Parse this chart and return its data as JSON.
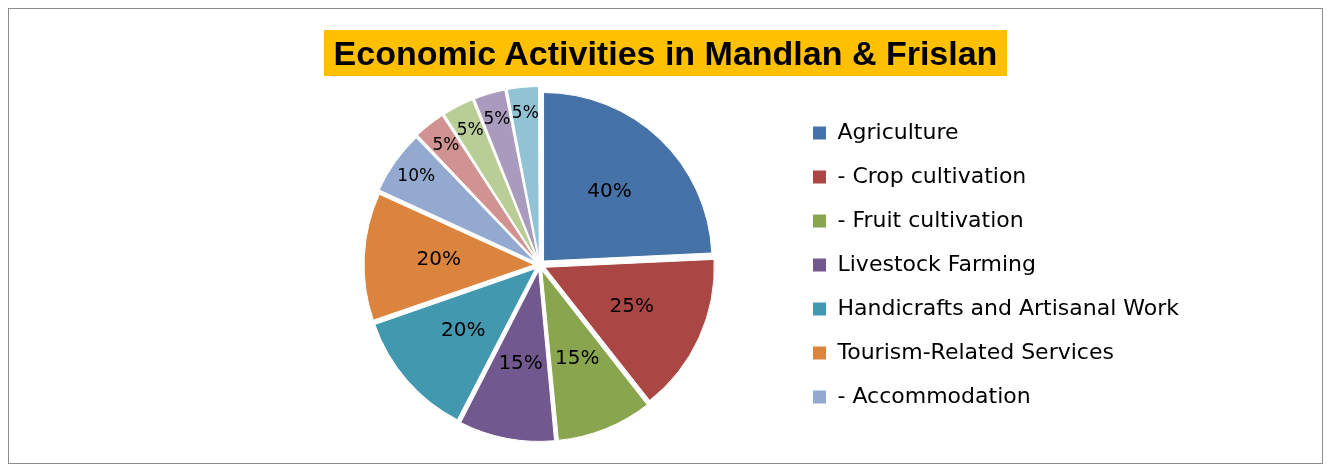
{
  "chart_data": {
    "type": "pie",
    "title": "Economic Activities in Mandlan & Frislan",
    "categories": [
      "Agriculture",
      "- Crop cultivation",
      "- Fruit cultivation",
      "Livestock Farming",
      "Handicrafts and Artisanal Work",
      "Tourism-Related Services",
      "- Accommodation",
      null,
      null,
      null,
      null
    ],
    "values": [
      40,
      25,
      15,
      15,
      20,
      20,
      10,
      5,
      5,
      5,
      5
    ],
    "value_labels": [
      "40%",
      "25%",
      "15%",
      "15%",
      "20%",
      "20%",
      "10%",
      "5%",
      "5%",
      "5%",
      "5%"
    ],
    "colors": [
      "#4572a7",
      "#aa4643",
      "#89a54e",
      "#71588f",
      "#4198af",
      "#db843d",
      "#93a9cf",
      "#d19392",
      "#b9cd96",
      "#a99bbd",
      "#92c3d5"
    ],
    "legend": "right"
  }
}
